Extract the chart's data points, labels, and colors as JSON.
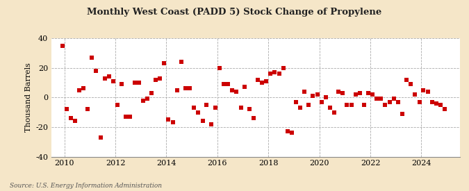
{
  "title": "Monthly West Coast (PADD 5) Stock Change of Propylene",
  "ylabel": "Thousand Barrels",
  "source": "Source: U.S. Energy Information Administration",
  "background_color": "#f5e6c8",
  "plot_background": "#ffffff",
  "marker_color": "#cc0000",
  "marker_size": 16,
  "ylim": [
    -40,
    40
  ],
  "yticks": [
    -40,
    -20,
    0,
    20,
    40
  ],
  "xlim_start": 2009.5,
  "xlim_end": 2025.5,
  "xticks": [
    2010,
    2012,
    2014,
    2016,
    2018,
    2020,
    2022,
    2024
  ],
  "data": [
    [
      2009.92,
      35
    ],
    [
      2010.08,
      -8
    ],
    [
      2010.25,
      -14
    ],
    [
      2010.42,
      -16
    ],
    [
      2010.58,
      5
    ],
    [
      2010.75,
      6
    ],
    [
      2010.92,
      -8
    ],
    [
      2011.08,
      27
    ],
    [
      2011.25,
      18
    ],
    [
      2011.42,
      -27
    ],
    [
      2011.58,
      13
    ],
    [
      2011.75,
      14
    ],
    [
      2011.92,
      11
    ],
    [
      2012.08,
      -5
    ],
    [
      2012.25,
      9
    ],
    [
      2012.42,
      -13
    ],
    [
      2012.58,
      -13
    ],
    [
      2012.75,
      10
    ],
    [
      2012.92,
      10
    ],
    [
      2013.08,
      -2
    ],
    [
      2013.25,
      -1
    ],
    [
      2013.42,
      3
    ],
    [
      2013.58,
      12
    ],
    [
      2013.75,
      13
    ],
    [
      2013.92,
      23
    ],
    [
      2014.08,
      -15
    ],
    [
      2014.25,
      -17
    ],
    [
      2014.42,
      5
    ],
    [
      2014.58,
      24
    ],
    [
      2014.75,
      6
    ],
    [
      2014.92,
      6
    ],
    [
      2015.08,
      -7
    ],
    [
      2015.25,
      -10
    ],
    [
      2015.42,
      -16
    ],
    [
      2015.58,
      -5
    ],
    [
      2015.75,
      -18
    ],
    [
      2015.92,
      -7
    ],
    [
      2016.08,
      20
    ],
    [
      2016.25,
      9
    ],
    [
      2016.42,
      9
    ],
    [
      2016.58,
      5
    ],
    [
      2016.75,
      4
    ],
    [
      2016.92,
      -7
    ],
    [
      2017.08,
      7
    ],
    [
      2017.25,
      -8
    ],
    [
      2017.42,
      -14
    ],
    [
      2017.58,
      12
    ],
    [
      2017.75,
      10
    ],
    [
      2017.92,
      11
    ],
    [
      2018.08,
      16
    ],
    [
      2018.25,
      17
    ],
    [
      2018.42,
      16
    ],
    [
      2018.58,
      20
    ],
    [
      2018.75,
      -23
    ],
    [
      2018.92,
      -24
    ],
    [
      2019.08,
      -3
    ],
    [
      2019.25,
      -7
    ],
    [
      2019.42,
      4
    ],
    [
      2019.58,
      -5
    ],
    [
      2019.75,
      1
    ],
    [
      2019.92,
      2
    ],
    [
      2020.08,
      -3
    ],
    [
      2020.25,
      0
    ],
    [
      2020.42,
      -7
    ],
    [
      2020.58,
      -10
    ],
    [
      2020.75,
      4
    ],
    [
      2020.92,
      3
    ],
    [
      2021.08,
      -5
    ],
    [
      2021.25,
      -5
    ],
    [
      2021.42,
      2
    ],
    [
      2021.58,
      3
    ],
    [
      2021.75,
      -5
    ],
    [
      2021.92,
      3
    ],
    [
      2022.08,
      2
    ],
    [
      2022.25,
      -1
    ],
    [
      2022.42,
      -1
    ],
    [
      2022.58,
      -5
    ],
    [
      2022.75,
      -3
    ],
    [
      2022.92,
      -1
    ],
    [
      2023.08,
      -3
    ],
    [
      2023.25,
      -11
    ],
    [
      2023.42,
      12
    ],
    [
      2023.58,
      9
    ],
    [
      2023.75,
      2
    ],
    [
      2023.92,
      -3
    ],
    [
      2024.08,
      5
    ],
    [
      2024.25,
      4
    ],
    [
      2024.42,
      -3
    ],
    [
      2024.58,
      -4
    ],
    [
      2024.75,
      -5
    ],
    [
      2024.92,
      -8
    ]
  ]
}
